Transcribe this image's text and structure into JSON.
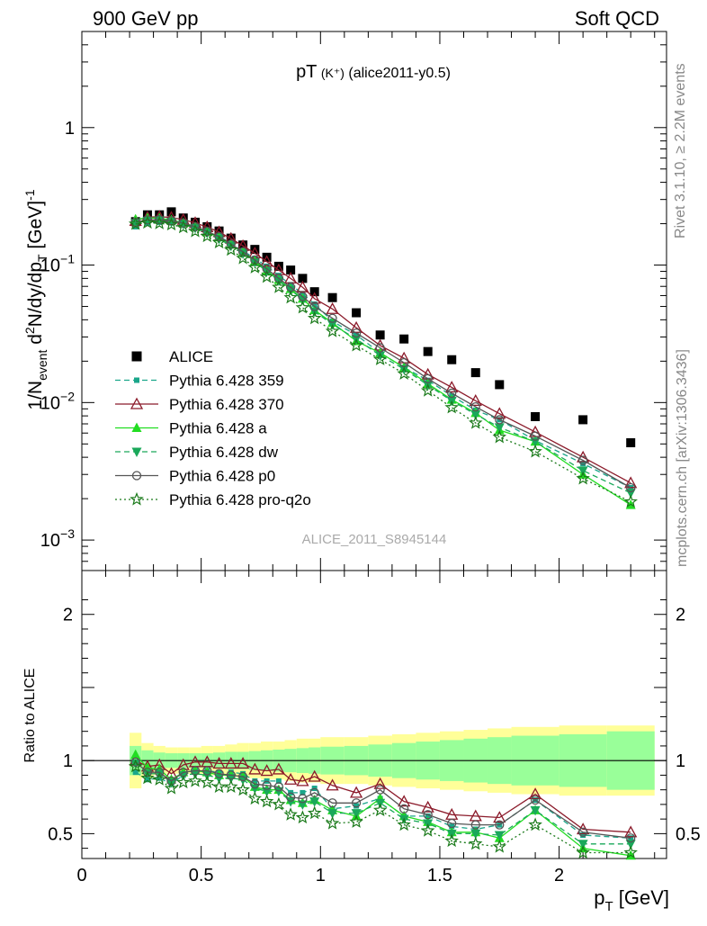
{
  "header": {
    "left_title": "900 GeV pp",
    "right_title": "Soft QCD",
    "side_top": "Rivet 3.1.10, ≥ 2.2M events",
    "side_bottom": "mcplots.cern.ch [arXiv:1306.3436]",
    "watermark": "ALICE_2011_S8945144"
  },
  "chart_data": [
    {
      "type": "scatter",
      "panel": "main",
      "title_main": "pT",
      "title_particle": "(K⁺)",
      "title_tag": "(alice2011-y0.5)",
      "ylabel": "1/N_event d²N/dy/dp_T [GeV]⁻¹",
      "yscale": "log",
      "ylim": [
        0.0006,
        5
      ],
      "xlim": [
        0,
        2.45
      ],
      "y_ticks": [
        {
          "value": 0.001,
          "base": "10",
          "exp": "−3"
        },
        {
          "value": 0.01,
          "base": "10",
          "exp": "−2"
        },
        {
          "value": 0.1,
          "base": "10",
          "exp": "−1"
        },
        {
          "value": 1,
          "base": "1",
          "exp": ""
        }
      ],
      "legend_position": "lower-left",
      "x": [
        0.225,
        0.275,
        0.325,
        0.375,
        0.425,
        0.475,
        0.525,
        0.575,
        0.625,
        0.675,
        0.725,
        0.775,
        0.825,
        0.875,
        0.925,
        0.975,
        1.05,
        1.15,
        1.25,
        1.35,
        1.45,
        1.55,
        1.65,
        1.75,
        1.9,
        2.1,
        2.3
      ],
      "series": [
        {
          "name": "ALICE",
          "color": "#000000",
          "marker": "square",
          "style": "data",
          "values": [
            0.207,
            0.232,
            0.232,
            0.244,
            0.22,
            0.205,
            0.19,
            0.177,
            0.157,
            0.14,
            0.13,
            0.114,
            0.098,
            0.092,
            0.08,
            0.064,
            0.058,
            0.045,
            0.031,
            0.029,
            0.0235,
            0.0205,
            0.0165,
            0.0135,
            0.0079,
            0.0075,
            0.0051
          ]
        },
        {
          "name": "Pythia 6.428 359",
          "color": "#1aa68a",
          "marker": "small-square",
          "style": "dashed",
          "values": [
            0.19,
            0.202,
            0.205,
            0.204,
            0.199,
            0.19,
            0.177,
            0.162,
            0.144,
            0.127,
            0.112,
            0.098,
            0.084,
            0.072,
            0.062,
            0.052,
            0.039,
            0.031,
            0.023,
            0.018,
            0.0145,
            0.0112,
            0.0088,
            0.0075,
            0.0053,
            0.0036,
            0.0024
          ]
        },
        {
          "name": "Pythia 6.428 370",
          "color": "#8b1a2a",
          "marker": "open-triangle",
          "style": "solid",
          "values": [
            0.21,
            0.223,
            0.225,
            0.222,
            0.214,
            0.203,
            0.189,
            0.174,
            0.156,
            0.138,
            0.122,
            0.106,
            0.092,
            0.08,
            0.069,
            0.057,
            0.048,
            0.035,
            0.026,
            0.021,
            0.016,
            0.0129,
            0.0103,
            0.0083,
            0.0061,
            0.004,
            0.0026
          ]
        },
        {
          "name": "Pythia 6.428 a",
          "color": "#22dd22",
          "marker": "filled-triangle",
          "style": "solid",
          "values": [
            0.215,
            0.22,
            0.219,
            0.213,
            0.203,
            0.19,
            0.174,
            0.159,
            0.141,
            0.124,
            0.107,
            0.091,
            0.078,
            0.067,
            0.057,
            0.047,
            0.038,
            0.028,
            0.023,
            0.018,
            0.0137,
            0.0105,
            0.0084,
            0.0063,
            0.0052,
            0.003,
            0.0018
          ]
        },
        {
          "name": "Pythia 6.428 dw",
          "color": "#1aa85a",
          "marker": "filled-triangle-down",
          "style": "dashed",
          "values": [
            0.203,
            0.21,
            0.211,
            0.206,
            0.198,
            0.186,
            0.171,
            0.155,
            0.138,
            0.121,
            0.105,
            0.09,
            0.077,
            0.066,
            0.056,
            0.046,
            0.037,
            0.029,
            0.022,
            0.0175,
            0.0134,
            0.0103,
            0.0082,
            0.0066,
            0.0052,
            0.0032,
            0.0022
          ]
        },
        {
          "name": "Pythia 6.428 p0",
          "color": "#555555",
          "marker": "open-circle",
          "style": "solid",
          "values": [
            0.205,
            0.213,
            0.214,
            0.21,
            0.202,
            0.19,
            0.176,
            0.161,
            0.142,
            0.125,
            0.109,
            0.094,
            0.08,
            0.069,
            0.059,
            0.05,
            0.041,
            0.032,
            0.025,
            0.0195,
            0.0149,
            0.0117,
            0.0093,
            0.0075,
            0.0057,
            0.0038,
            0.0024
          ]
        },
        {
          "name": "Pythia 6.428 pro-q2o",
          "color": "#1a7a1a",
          "marker": "open-star",
          "style": "dotted",
          "values": [
            0.199,
            0.203,
            0.201,
            0.197,
            0.188,
            0.176,
            0.162,
            0.146,
            0.129,
            0.112,
            0.096,
            0.082,
            0.069,
            0.058,
            0.049,
            0.041,
            0.033,
            0.026,
            0.0206,
            0.0162,
            0.0122,
            0.0092,
            0.0071,
            0.0056,
            0.0044,
            0.0028,
            0.0019
          ]
        }
      ]
    },
    {
      "type": "line",
      "panel": "ratio",
      "ylabel": "Ratio to ALICE",
      "ylim": [
        0.33,
        2.3
      ],
      "xlim": [
        0,
        2.45
      ],
      "y_ticks": [
        0.5,
        1,
        2
      ],
      "y_tick_labels": [
        "0.5",
        "1",
        "2"
      ],
      "x_ticks": [
        0,
        0.5,
        1,
        1.5,
        2
      ],
      "x_tick_labels": [
        "0",
        "0.5",
        "1",
        "1.5",
        "2"
      ],
      "xlabel": "p_T [GeV]",
      "reference_line": 1,
      "bands": {
        "bin_edges": [
          0.2,
          0.25,
          0.3,
          0.35,
          0.4,
          0.45,
          0.5,
          0.55,
          0.6,
          0.65,
          0.7,
          0.75,
          0.8,
          0.85,
          0.9,
          0.95,
          1.0,
          1.1,
          1.2,
          1.3,
          1.4,
          1.5,
          1.6,
          1.7,
          1.8,
          2.0,
          2.2,
          2.4
        ],
        "stat_color": "#99ff99",
        "total_color": "#ffff99",
        "stat_halfwidth": [
          0.1,
          0.07,
          0.055,
          0.05,
          0.05,
          0.05,
          0.05,
          0.055,
          0.06,
          0.06,
          0.065,
          0.07,
          0.075,
          0.08,
          0.085,
          0.09,
          0.095,
          0.1,
          0.11,
          0.12,
          0.13,
          0.14,
          0.15,
          0.16,
          0.17,
          0.18,
          0.2
        ],
        "total_halfwidth": [
          0.19,
          0.12,
          0.1,
          0.09,
          0.09,
          0.09,
          0.1,
          0.1,
          0.11,
          0.12,
          0.12,
          0.13,
          0.13,
          0.14,
          0.15,
          0.15,
          0.16,
          0.16,
          0.17,
          0.18,
          0.19,
          0.2,
          0.21,
          0.22,
          0.23,
          0.24,
          0.24
        ]
      },
      "series": [
        {
          "name": "Pythia 6.428 359",
          "values": [
            0.92,
            0.87,
            0.88,
            0.84,
            0.9,
            0.93,
            0.93,
            0.92,
            0.92,
            0.91,
            0.86,
            0.86,
            0.86,
            0.78,
            0.78,
            0.81,
            0.67,
            0.69,
            0.74,
            0.62,
            0.62,
            0.55,
            0.53,
            0.56,
            0.73,
            0.49,
            0.47
          ]
        },
        {
          "name": "Pythia 6.428 370",
          "values": [
            1.0,
            0.96,
            0.97,
            0.91,
            0.97,
            0.99,
            0.99,
            0.98,
            0.98,
            0.98,
            0.94,
            0.93,
            0.94,
            0.87,
            0.86,
            0.89,
            0.83,
            0.78,
            0.84,
            0.72,
            0.68,
            0.63,
            0.62,
            0.61,
            0.77,
            0.53,
            0.51
          ]
        },
        {
          "name": "Pythia 6.428 a",
          "values": [
            1.04,
            0.95,
            0.94,
            0.87,
            0.92,
            0.93,
            0.92,
            0.9,
            0.9,
            0.89,
            0.82,
            0.8,
            0.8,
            0.73,
            0.71,
            0.73,
            0.66,
            0.62,
            0.74,
            0.62,
            0.58,
            0.51,
            0.51,
            0.47,
            0.66,
            0.4,
            0.35
          ]
        },
        {
          "name": "Pythia 6.428 dw",
          "values": [
            0.98,
            0.91,
            0.91,
            0.85,
            0.9,
            0.91,
            0.9,
            0.88,
            0.88,
            0.87,
            0.81,
            0.79,
            0.79,
            0.72,
            0.7,
            0.72,
            0.64,
            0.64,
            0.71,
            0.6,
            0.57,
            0.5,
            0.5,
            0.49,
            0.66,
            0.43,
            0.43
          ]
        },
        {
          "name": "Pythia 6.428 p0",
          "values": [
            0.99,
            0.92,
            0.92,
            0.86,
            0.92,
            0.93,
            0.93,
            0.91,
            0.9,
            0.89,
            0.84,
            0.83,
            0.82,
            0.75,
            0.74,
            0.78,
            0.71,
            0.71,
            0.8,
            0.67,
            0.63,
            0.57,
            0.56,
            0.56,
            0.73,
            0.51,
            0.47
          ]
        },
        {
          "name": "Pythia 6.428 pro-q2o",
          "values": [
            0.96,
            0.88,
            0.87,
            0.81,
            0.85,
            0.86,
            0.85,
            0.82,
            0.82,
            0.8,
            0.74,
            0.72,
            0.7,
            0.63,
            0.61,
            0.64,
            0.57,
            0.58,
            0.66,
            0.56,
            0.52,
            0.45,
            0.43,
            0.41,
            0.56,
            0.37,
            0.37
          ]
        }
      ]
    }
  ]
}
